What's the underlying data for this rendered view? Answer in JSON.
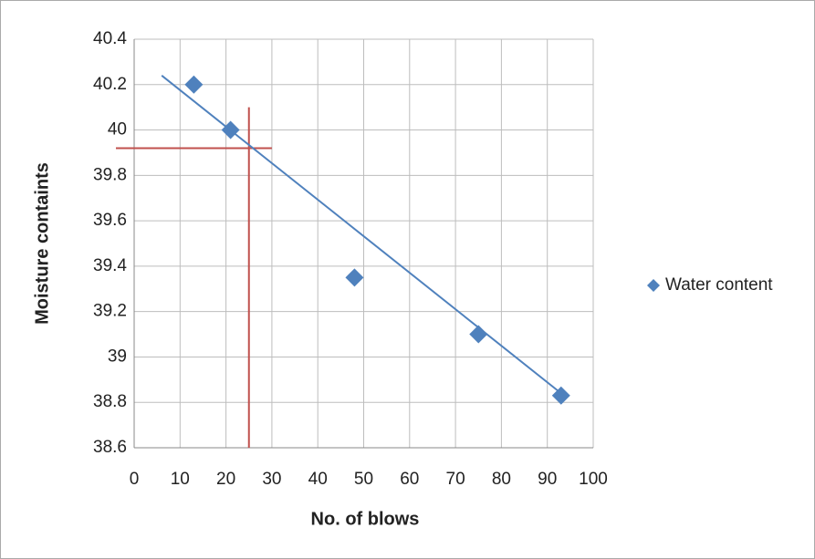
{
  "chart_data": {
    "type": "scatter",
    "x_label": "No. of blows",
    "y_label": "Moisture containts",
    "series": [
      {
        "name": "Water content",
        "color": "#4f81bd",
        "x": [
          13,
          21,
          48,
          75,
          93
        ],
        "values": [
          40.2,
          40.0,
          39.35,
          39.1,
          38.83
        ]
      }
    ],
    "trendline": {
      "color": "#4f81bd",
      "x": [
        6,
        93
      ],
      "values": [
        40.24,
        38.84
      ]
    },
    "reference_lines": {
      "color": "#c0504d",
      "x": 25,
      "x_top": 40.1,
      "y": 39.92,
      "y_right": 30
    },
    "xlim": [
      0,
      100
    ],
    "xticks": [
      0,
      10,
      20,
      30,
      40,
      50,
      60,
      70,
      80,
      90,
      100
    ],
    "ylim": [
      38.6,
      40.4
    ],
    "yticks": [
      38.6,
      38.8,
      39,
      39.2,
      39.4,
      39.6,
      39.8,
      40,
      40.2,
      40.4
    ],
    "grid": true,
    "legend": "right"
  }
}
